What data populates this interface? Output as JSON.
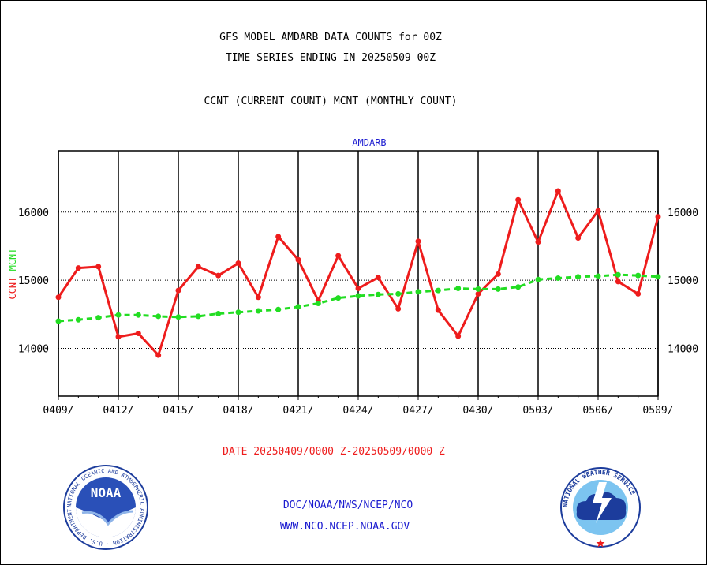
{
  "header": {
    "title_line1": "GFS MODEL AMDARB DATA COUNTS for 00Z",
    "title_line2": "TIME SERIES ENDING IN 20250509 00Z",
    "subtitle": "CCNT (CURRENT COUNT) MCNT (MONTHLY COUNT)"
  },
  "footer": {
    "date_range": "DATE 20250409/0000 Z-20250509/0000 Z",
    "org_path": "DOC/NOAA/NWS/NCEP/NCO",
    "website": "WWW.NCO.NCEP.NOAA.GOV",
    "noaa_logo_text": "NOAA",
    "noaa_ring_text": "NATIONAL OCEANIC AND ATMOSPHERIC ADMINISTRATION · U.S. DEPARTMENT OF COMMERCE",
    "nws_ring_text": "NATIONAL WEATHER SERVICE"
  },
  "colors": {
    "ccnt": "#ee1c1c",
    "mcnt": "#22dd22",
    "header_text": "#000000",
    "plot_label": "#1c1cd0",
    "date_text": "#ee1c1c",
    "footer_text": "#1c1cd0"
  },
  "chart_data": {
    "type": "line",
    "title": "AMDARB",
    "ylabel": "CCNT  MCNT",
    "ylim": [
      13300,
      16900
    ],
    "yticks": [
      14000,
      15000,
      16000
    ],
    "ytick_labels": [
      "14000",
      "15000",
      "16000"
    ],
    "xlim": [
      0,
      30
    ],
    "xticks": [
      0,
      3,
      6,
      9,
      12,
      15,
      18,
      21,
      24,
      27,
      30
    ],
    "xtick_labels": [
      "0409/",
      "0412/",
      "0415/",
      "0418/",
      "0421/",
      "0424/",
      "0427/",
      "0430/",
      "0503/",
      "0506/",
      "0509/"
    ],
    "x": [
      "2025-04-09",
      "2025-04-10",
      "2025-04-11",
      "2025-04-12",
      "2025-04-13",
      "2025-04-14",
      "2025-04-15",
      "2025-04-16",
      "2025-04-17",
      "2025-04-18",
      "2025-04-19",
      "2025-04-20",
      "2025-04-21",
      "2025-04-22",
      "2025-04-23",
      "2025-04-24",
      "2025-04-25",
      "2025-04-26",
      "2025-04-27",
      "2025-04-28",
      "2025-04-29",
      "2025-04-30",
      "2025-05-01",
      "2025-05-02",
      "2025-05-03",
      "2025-05-04",
      "2025-05-05",
      "2025-05-06",
      "2025-05-07",
      "2025-05-08",
      "2025-05-09"
    ],
    "grid": true,
    "series": [
      {
        "name": "CCNT",
        "values": [
          14750,
          15180,
          15200,
          14170,
          14220,
          13900,
          14850,
          15200,
          15070,
          15250,
          14750,
          15640,
          15300,
          14700,
          15360,
          14880,
          15040,
          14580,
          15570,
          14560,
          14180,
          14800,
          15090,
          16180,
          15560,
          16310,
          15620,
          16020,
          14980,
          14800,
          15930
        ]
      },
      {
        "name": "MCNT",
        "values": [
          14400,
          14420,
          14450,
          14490,
          14490,
          14470,
          14460,
          14470,
          14510,
          14530,
          14550,
          14570,
          14610,
          14660,
          14740,
          14770,
          14790,
          14800,
          14830,
          14850,
          14880,
          14870,
          14870,
          14900,
          15010,
          15030,
          15050,
          15060,
          15080,
          15070,
          15050
        ]
      }
    ]
  }
}
